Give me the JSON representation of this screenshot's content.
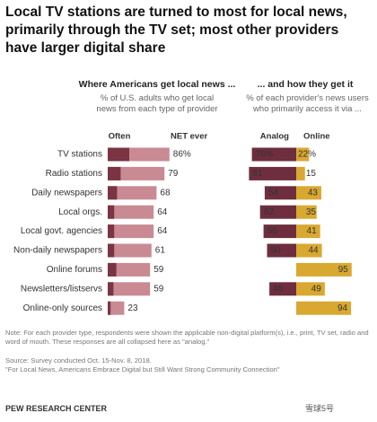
{
  "title": "Local TV stations are turned to most for local news, primarily through the TV set; most other providers have larger digital share",
  "chart_data": [
    {
      "type": "bar",
      "title": "Where Americans get local news ...",
      "subtitle": "% of U.S. adults who get local news from each type of provider",
      "categories": [
        "TV stations",
        "Radio stations",
        "Daily newspapers",
        "Local orgs.",
        "Local govt. agencies",
        "Non-daily newspapers",
        "Online forums",
        "Newsletters/listservs",
        "Online-only sources"
      ],
      "xlim": [
        0,
        100
      ],
      "series": [
        {
          "name": "NET ever",
          "color": "#c98a93",
          "values": [
            86,
            79,
            68,
            64,
            64,
            61,
            59,
            59,
            23
          ],
          "value_labels": [
            "86%",
            "79",
            "68",
            "64",
            "64",
            "61",
            "59",
            "59",
            "23"
          ]
        },
        {
          "name": "Often",
          "color": "#7a3444",
          "values": [
            30,
            18,
            13,
            9,
            9,
            9,
            12,
            8,
            4
          ]
        }
      ]
    },
    {
      "type": "diverging",
      "title": "... and how they get it",
      "subtitle": "% of each provider's news users who primarily access it via ...",
      "xlim": [
        0,
        100
      ],
      "series": [
        {
          "name": "Analog",
          "color": "#6e2e3e",
          "values": [
            76,
            81,
            54,
            62,
            56,
            50,
            null,
            46,
            null
          ],
          "value_labels": [
            "76%",
            "81",
            "54",
            "62",
            "56",
            "50",
            null,
            "46",
            null
          ]
        },
        {
          "name": "Online",
          "color": "#d9a830",
          "values": [
            22,
            15,
            43,
            35,
            41,
            44,
            95,
            49,
            94
          ],
          "value_labels": [
            "22%",
            "15",
            "43",
            "35",
            "41",
            "44",
            "95",
            "49",
            "94"
          ]
        }
      ]
    }
  ],
  "note": "Note: For each provider type, respondents were shown the applicable non-digital platform(s), i.e., print, TV set, radio and word of mouth. These responses are all collapsed here as \"analog.\"",
  "source": "Source: Survey conducted Oct. 15-Nov. 8, 2018.",
  "citation": "\"For Local News, Americans Embrace Digital but Still Want Strong Community Connection\"",
  "footer": "PEW RESEARCH CENTER",
  "watermark": "雪球5号"
}
